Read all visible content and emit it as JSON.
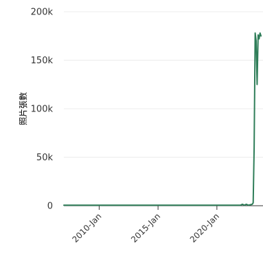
{
  "chart_data": {
    "type": "line",
    "title": "",
    "xlabel": "",
    "ylabel": "照片張數",
    "grid": true,
    "legend": "none",
    "colors": {
      "line": "#2e7d58",
      "axis": "#333333",
      "grid": "#ececec",
      "text": "#333333",
      "label": "#666666"
    },
    "ylim": [
      0,
      200000
    ],
    "xlim": [
      "2007-01",
      "2023-12"
    ],
    "y_ticks": [
      {
        "value": 0,
        "label": "0"
      },
      {
        "value": 50000,
        "label": "50k"
      },
      {
        "value": 100000,
        "label": "100k"
      },
      {
        "value": 150000,
        "label": "150k"
      },
      {
        "value": 200000,
        "label": "200k"
      }
    ],
    "x_ticks": [
      {
        "value": "2010-01",
        "label": "2010-Jan"
      },
      {
        "value": "2015-01",
        "label": "2015-Jan"
      },
      {
        "value": "2020-01",
        "label": "2020-Jan"
      }
    ],
    "series": [
      {
        "x": [
          "2007-01",
          "2008-01",
          "2009-01",
          "2010-01",
          "2011-01",
          "2012-01",
          "2013-01",
          "2014-01",
          "2015-01",
          "2016-01",
          "2017-01",
          "2018-01",
          "2019-01",
          "2020-01",
          "2021-01",
          "2022-01",
          "2022-03",
          "2022-05",
          "2022-07",
          "2022-09",
          "2022-11",
          "2023-01",
          "2023-02",
          "2023-03",
          "2023-04",
          "2023-05",
          "2023-06",
          "2023-07",
          "2023-08",
          "2023-09",
          "2023-10"
        ],
        "values": [
          500,
          500,
          500,
          500,
          500,
          500,
          500,
          500,
          500,
          500,
          500,
          500,
          500,
          500,
          500,
          500,
          1500,
          500,
          1500,
          500,
          1000,
          1500,
          3000,
          60000,
          178000,
          170000,
          125000,
          176000,
          172000,
          178000,
          175000
        ]
      }
    ]
  }
}
